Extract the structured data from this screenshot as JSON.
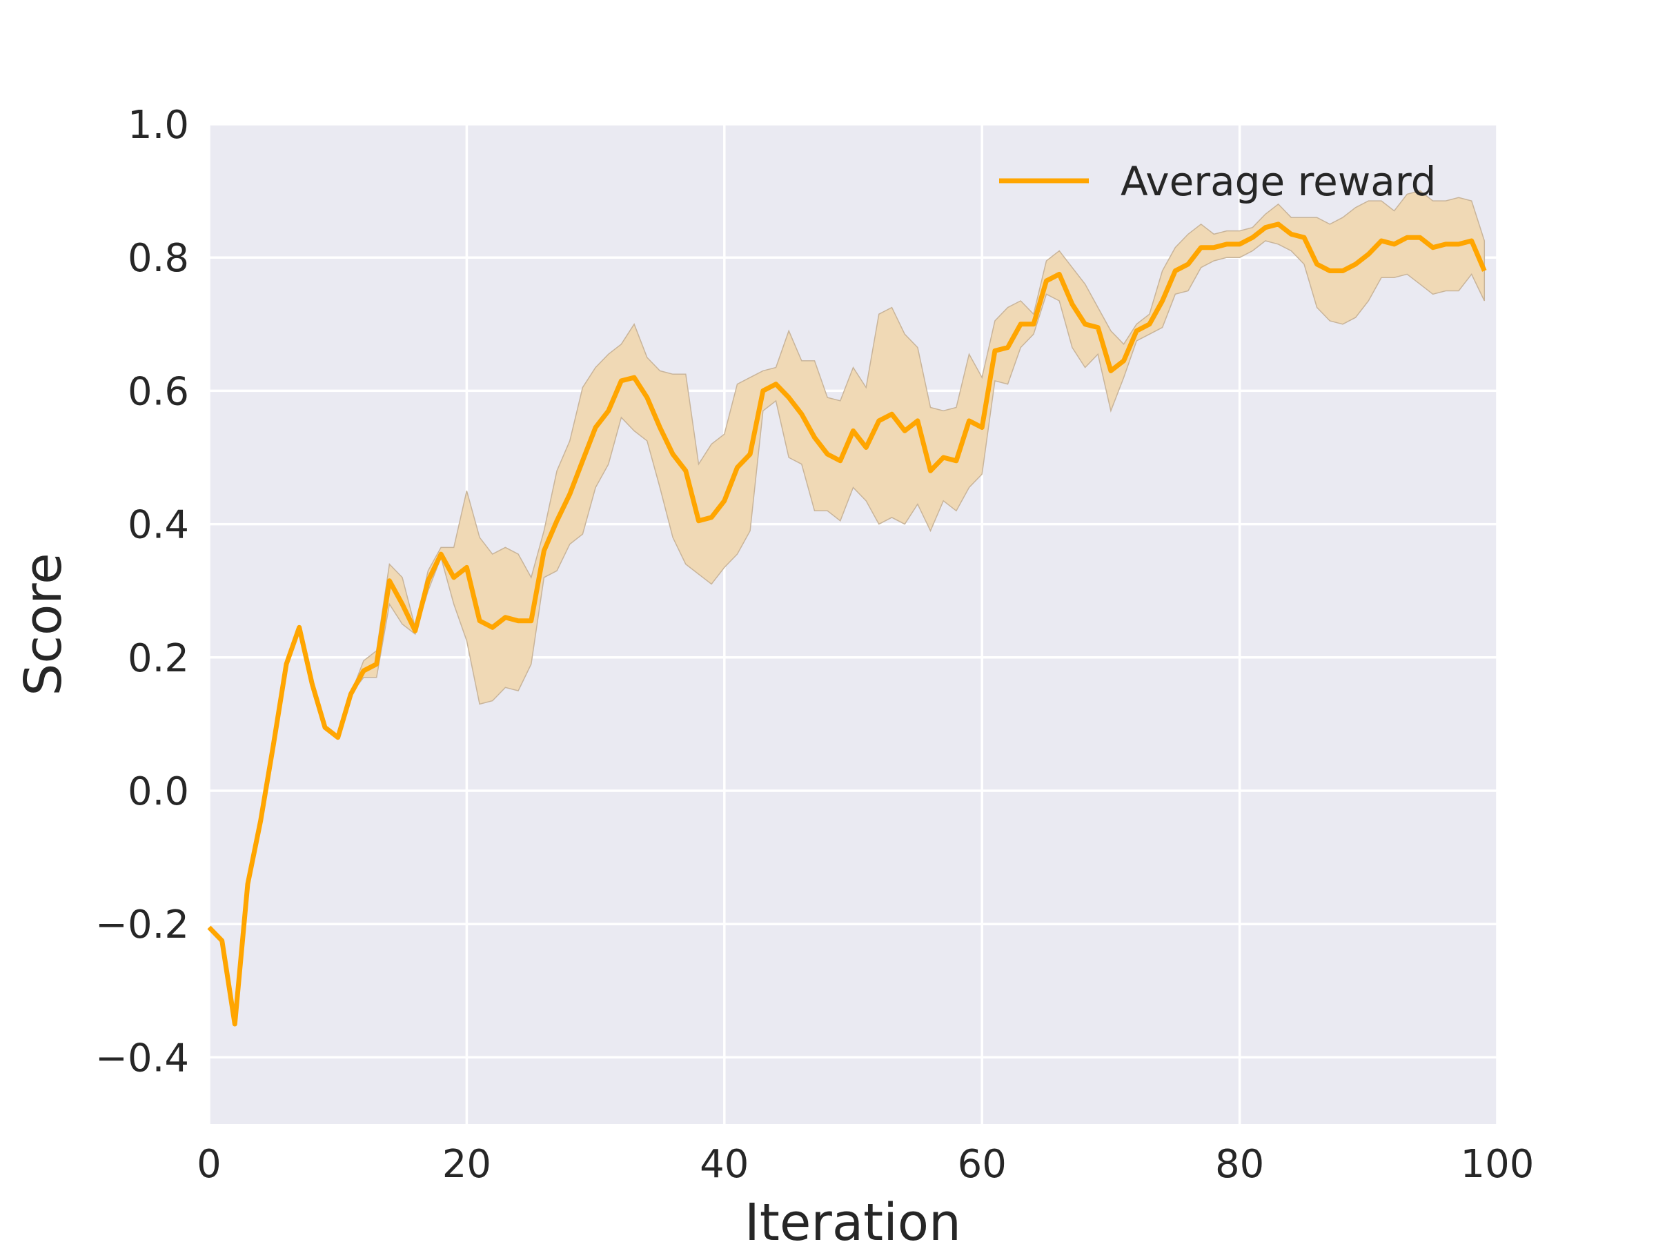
{
  "chart_data": {
    "type": "line",
    "title": "",
    "xlabel": "Iteration",
    "ylabel": "Score",
    "xlim": [
      0,
      100
    ],
    "ylim": [
      -0.5,
      1.0
    ],
    "xticks": [
      0,
      20,
      40,
      60,
      80,
      100
    ],
    "xtick_labels": [
      "0",
      "20",
      "40",
      "60",
      "80",
      "100"
    ],
    "yticks": [
      -0.4,
      -0.2,
      0.0,
      0.2,
      0.4,
      0.6,
      0.8,
      1.0
    ],
    "ytick_labels": [
      "−0.4",
      "−0.2",
      "0.0",
      "0.2",
      "0.4",
      "0.6",
      "0.8",
      "1.0"
    ],
    "grid": true,
    "legend_position": "top-right",
    "colors": {
      "plot_background": "#eaeaf2",
      "grid": "#ffffff",
      "line": "#ffa500",
      "band_fill": "#f0d9b5",
      "band_edge": "#c8b49a"
    },
    "series": [
      {
        "name": "Average reward",
        "x": [
          0,
          1,
          2,
          3,
          4,
          5,
          6,
          7,
          8,
          9,
          10,
          11,
          12,
          13,
          14,
          15,
          16,
          17,
          18,
          19,
          20,
          21,
          22,
          23,
          24,
          25,
          26,
          27,
          28,
          29,
          30,
          31,
          32,
          33,
          34,
          35,
          36,
          37,
          38,
          39,
          40,
          41,
          42,
          43,
          44,
          45,
          46,
          47,
          48,
          49,
          50,
          51,
          52,
          53,
          54,
          55,
          56,
          57,
          58,
          59,
          60,
          61,
          62,
          63,
          64,
          65,
          66,
          67,
          68,
          69,
          70,
          71,
          72,
          73,
          74,
          75,
          76,
          77,
          78,
          79,
          80,
          81,
          82,
          83,
          84,
          85,
          86,
          87,
          88,
          89,
          90,
          91,
          92,
          93,
          94,
          95,
          96,
          97,
          98,
          99
        ],
        "values": [
          -0.205,
          -0.225,
          -0.35,
          -0.14,
          -0.045,
          0.07,
          0.19,
          0.245,
          0.16,
          0.095,
          0.08,
          0.145,
          0.18,
          0.19,
          0.315,
          0.28,
          0.24,
          0.315,
          0.355,
          0.32,
          0.335,
          0.255,
          0.245,
          0.26,
          0.255,
          0.255,
          0.36,
          0.405,
          0.445,
          0.495,
          0.545,
          0.57,
          0.615,
          0.62,
          0.59,
          0.545,
          0.505,
          0.48,
          0.405,
          0.41,
          0.435,
          0.485,
          0.505,
          0.6,
          0.61,
          0.59,
          0.565,
          0.53,
          0.505,
          0.495,
          0.54,
          0.515,
          0.555,
          0.565,
          0.54,
          0.555,
          0.48,
          0.5,
          0.495,
          0.555,
          0.545,
          0.66,
          0.665,
          0.7,
          0.7,
          0.765,
          0.775,
          0.73,
          0.7,
          0.695,
          0.63,
          0.645,
          0.69,
          0.7,
          0.735,
          0.78,
          0.79,
          0.815,
          0.815,
          0.82,
          0.82,
          0.83,
          0.845,
          0.85,
          0.835,
          0.83,
          0.79,
          0.78,
          0.78,
          0.79,
          0.805,
          0.825,
          0.82,
          0.83,
          0.83,
          0.815,
          0.82,
          0.82,
          0.825,
          0.78
        ],
        "lower": [
          -0.205,
          -0.225,
          -0.35,
          -0.14,
          -0.045,
          0.07,
          0.19,
          0.245,
          0.16,
          0.095,
          0.08,
          0.145,
          0.17,
          0.17,
          0.28,
          0.25,
          0.235,
          0.3,
          0.35,
          0.28,
          0.225,
          0.13,
          0.135,
          0.155,
          0.15,
          0.19,
          0.32,
          0.33,
          0.37,
          0.385,
          0.455,
          0.49,
          0.56,
          0.54,
          0.525,
          0.455,
          0.38,
          0.34,
          0.325,
          0.31,
          0.335,
          0.355,
          0.39,
          0.57,
          0.585,
          0.5,
          0.49,
          0.42,
          0.42,
          0.405,
          0.455,
          0.435,
          0.4,
          0.41,
          0.4,
          0.43,
          0.39,
          0.435,
          0.42,
          0.455,
          0.475,
          0.615,
          0.61,
          0.665,
          0.685,
          0.745,
          0.735,
          0.665,
          0.635,
          0.655,
          0.57,
          0.62,
          0.675,
          0.685,
          0.695,
          0.745,
          0.75,
          0.785,
          0.795,
          0.8,
          0.8,
          0.81,
          0.825,
          0.82,
          0.81,
          0.79,
          0.725,
          0.705,
          0.7,
          0.71,
          0.735,
          0.77,
          0.77,
          0.775,
          0.76,
          0.745,
          0.75,
          0.75,
          0.775,
          0.735
        ],
        "upper": [
          -0.205,
          -0.225,
          -0.35,
          -0.14,
          -0.045,
          0.07,
          0.19,
          0.245,
          0.16,
          0.095,
          0.08,
          0.145,
          0.195,
          0.21,
          0.34,
          0.32,
          0.245,
          0.33,
          0.365,
          0.365,
          0.45,
          0.38,
          0.355,
          0.365,
          0.355,
          0.32,
          0.39,
          0.48,
          0.525,
          0.605,
          0.635,
          0.655,
          0.67,
          0.7,
          0.65,
          0.63,
          0.625,
          0.625,
          0.49,
          0.52,
          0.535,
          0.61,
          0.62,
          0.63,
          0.635,
          0.69,
          0.645,
          0.645,
          0.59,
          0.585,
          0.635,
          0.605,
          0.715,
          0.725,
          0.685,
          0.665,
          0.575,
          0.57,
          0.575,
          0.655,
          0.62,
          0.705,
          0.725,
          0.735,
          0.715,
          0.795,
          0.81,
          0.785,
          0.76,
          0.725,
          0.69,
          0.67,
          0.7,
          0.715,
          0.78,
          0.815,
          0.835,
          0.85,
          0.835,
          0.84,
          0.84,
          0.845,
          0.865,
          0.88,
          0.86,
          0.86,
          0.86,
          0.85,
          0.86,
          0.875,
          0.885,
          0.885,
          0.87,
          0.895,
          0.9,
          0.885,
          0.885,
          0.89,
          0.885,
          0.825
        ]
      }
    ]
  }
}
